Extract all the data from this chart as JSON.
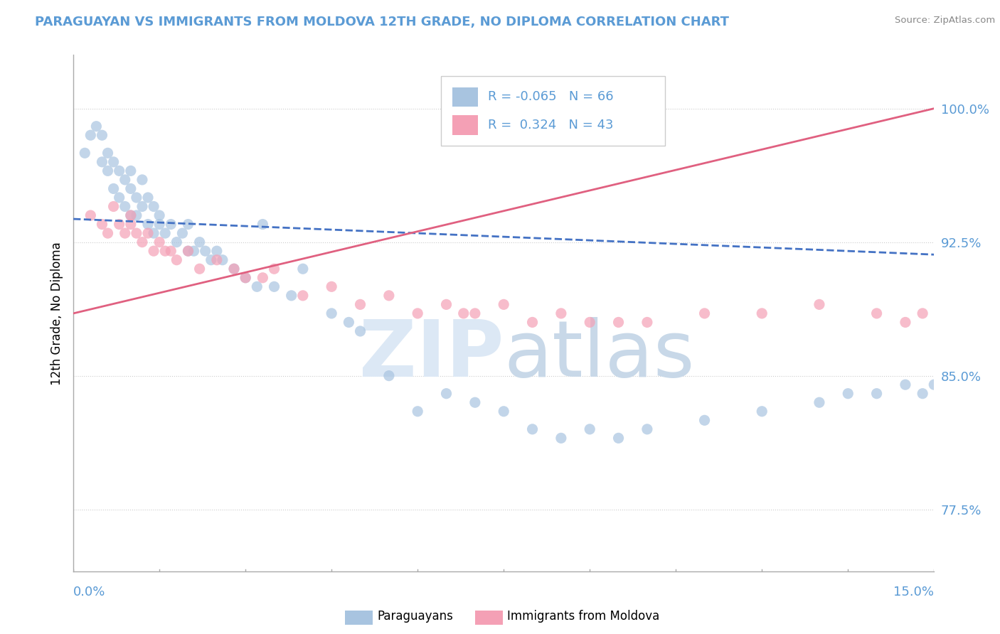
{
  "title": "PARAGUAYAN VS IMMIGRANTS FROM MOLDOVA 12TH GRADE, NO DIPLOMA CORRELATION CHART",
  "source": "Source: ZipAtlas.com",
  "xmin": 0.0,
  "xmax": 15.0,
  "ymin": 74.0,
  "ymax": 103.0,
  "yticks": [
    77.5,
    85.0,
    92.5,
    100.0
  ],
  "ylabel": "12th Grade, No Diploma",
  "r_blue": -0.065,
  "n_blue": 66,
  "r_pink": 0.324,
  "n_pink": 43,
  "blue_color": "#a8c4e0",
  "pink_color": "#f4a0b5",
  "blue_line_color": "#4472c4",
  "pink_line_color": "#e06080",
  "blue_scatter_x": [
    0.2,
    0.3,
    0.4,
    0.5,
    0.5,
    0.6,
    0.6,
    0.7,
    0.7,
    0.8,
    0.8,
    0.9,
    0.9,
    1.0,
    1.0,
    1.0,
    1.1,
    1.1,
    1.2,
    1.2,
    1.3,
    1.3,
    1.4,
    1.4,
    1.5,
    1.5,
    1.6,
    1.7,
    1.8,
    1.9,
    2.0,
    2.0,
    2.1,
    2.2,
    2.3,
    2.4,
    2.5,
    2.6,
    2.8,
    3.0,
    3.2,
    3.5,
    3.8,
    4.0,
    4.5,
    4.8,
    5.0,
    5.5,
    6.5,
    7.0,
    7.5,
    8.0,
    8.5,
    9.0,
    9.5,
    10.0,
    11.0,
    12.0,
    13.0,
    13.5,
    14.0,
    14.5,
    14.8,
    15.0,
    6.0,
    3.3
  ],
  "blue_scatter_y": [
    97.5,
    98.5,
    99.0,
    97.0,
    98.5,
    96.5,
    97.5,
    95.5,
    97.0,
    95.0,
    96.5,
    94.5,
    96.0,
    94.0,
    95.5,
    96.5,
    94.0,
    95.0,
    94.5,
    96.0,
    93.5,
    95.0,
    93.0,
    94.5,
    93.5,
    94.0,
    93.0,
    93.5,
    92.5,
    93.0,
    92.0,
    93.5,
    92.0,
    92.5,
    92.0,
    91.5,
    92.0,
    91.5,
    91.0,
    90.5,
    90.0,
    90.0,
    89.5,
    91.0,
    88.5,
    88.0,
    87.5,
    85.0,
    84.0,
    83.5,
    83.0,
    82.0,
    81.5,
    82.0,
    81.5,
    82.0,
    82.5,
    83.0,
    83.5,
    84.0,
    84.0,
    84.5,
    84.0,
    84.5,
    83.0,
    93.5
  ],
  "pink_scatter_x": [
    0.3,
    0.5,
    0.6,
    0.7,
    0.8,
    0.9,
    1.0,
    1.0,
    1.1,
    1.2,
    1.3,
    1.4,
    1.5,
    1.6,
    1.7,
    1.8,
    2.0,
    2.2,
    2.5,
    2.8,
    3.0,
    3.3,
    3.5,
    4.0,
    4.5,
    5.0,
    5.5,
    6.0,
    6.5,
    7.0,
    7.5,
    8.0,
    8.5,
    9.0,
    10.0,
    11.0,
    12.0,
    13.0,
    14.0,
    14.5,
    14.8,
    6.8,
    9.5
  ],
  "pink_scatter_y": [
    94.0,
    93.5,
    93.0,
    94.5,
    93.5,
    93.0,
    93.5,
    94.0,
    93.0,
    92.5,
    93.0,
    92.0,
    92.5,
    92.0,
    92.0,
    91.5,
    92.0,
    91.0,
    91.5,
    91.0,
    90.5,
    90.5,
    91.0,
    89.5,
    90.0,
    89.0,
    89.5,
    88.5,
    89.0,
    88.5,
    89.0,
    88.0,
    88.5,
    88.0,
    88.0,
    88.5,
    88.5,
    89.0,
    88.5,
    88.0,
    88.5,
    88.5,
    88.0
  ],
  "blue_trend_x": [
    0.0,
    15.0
  ],
  "blue_trend_y": [
    93.8,
    91.8
  ],
  "pink_trend_x": [
    0.0,
    15.0
  ],
  "pink_trend_y": [
    88.5,
    100.0
  ]
}
